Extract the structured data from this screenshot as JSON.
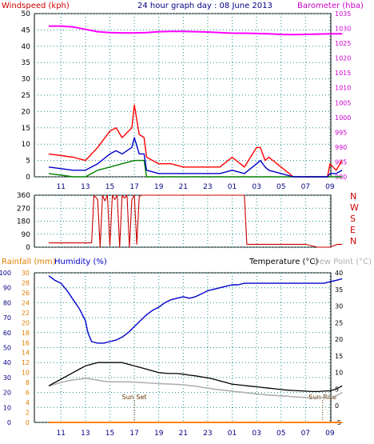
{
  "chart_data": [
    {
      "type": "line",
      "title": "24 hour graph day : 08 June 2013",
      "y_left_label": "Windspeed (kph)",
      "y_right_label": "Barometer (hba)",
      "ylim_left": [
        0,
        50
      ],
      "ylim_right": [
        980,
        1035
      ],
      "y_left_ticks": [
        "0",
        "5",
        "10",
        "15",
        "20",
        "25",
        "30",
        "35",
        "40",
        "45",
        "50"
      ],
      "y_right_ticks": [
        "980",
        "985",
        "990",
        "995",
        "1000",
        "1005",
        "1010",
        "1015",
        "1020",
        "1025",
        "1030",
        "1035"
      ],
      "x_ticks": [
        "11",
        "13",
        "15",
        "17",
        "19",
        "21",
        "23",
        "01",
        "03",
        "05",
        "07",
        "09"
      ],
      "grid": true,
      "colors": {
        "gust": "#ff0000",
        "average": "#0000cc",
        "wind": "#008000",
        "barometer": "#ff00ff"
      },
      "series": [
        {
          "key": "barometer",
          "x_hours": [
            0,
            1,
            2,
            3,
            4,
            5,
            6,
            7,
            8,
            9,
            10,
            11,
            12,
            13,
            14,
            15,
            16,
            17,
            18,
            19,
            20,
            21,
            22,
            23,
            24
          ],
          "values": [
            1030.8,
            1030.8,
            1030.5,
            1029.7,
            1028.9,
            1028.6,
            1028.5,
            1028.5,
            1028.6,
            1028.9,
            1029.0,
            1029.0,
            1028.9,
            1028.8,
            1028.6,
            1028.4,
            1028.4,
            1028.3,
            1028.2,
            1028.0,
            1027.9,
            1028.0,
            1028.1,
            1028.2,
            1028.2
          ]
        },
        {
          "key": "gust",
          "x_hours": [
            0,
            2,
            3,
            4,
            5,
            5.5,
            6,
            6.8,
            7,
            7.4,
            7.8,
            8,
            9,
            10,
            11,
            12,
            13,
            14,
            15,
            16,
            17,
            17.3,
            17.7,
            18,
            19,
            20,
            21,
            22,
            22.8,
            23,
            23.5,
            24
          ],
          "values": [
            7,
            6,
            5,
            9,
            14,
            15,
            12,
            15,
            22,
            13,
            12,
            6,
            4,
            4,
            3,
            3,
            3,
            3,
            6,
            3,
            9,
            9,
            5,
            6,
            3,
            0,
            0,
            0,
            0,
            4,
            2,
            5
          ]
        },
        {
          "key": "average",
          "x_hours": [
            0,
            2,
            3,
            4,
            5,
            5.5,
            6,
            6.8,
            7,
            7.4,
            7.8,
            8,
            9,
            10,
            11,
            12,
            13,
            14,
            15,
            16,
            17,
            17.3,
            17.7,
            18,
            19,
            20,
            21,
            22,
            22.8,
            23,
            23.5,
            24
          ],
          "values": [
            3,
            2,
            2,
            4,
            7,
            8,
            7,
            9,
            12,
            7,
            7,
            2,
            1,
            1,
            1,
            1,
            1,
            1,
            2,
            1,
            4,
            5,
            3,
            2,
            1,
            0,
            0,
            0,
            0,
            1,
            1,
            2
          ]
        },
        {
          "key": "wind",
          "x_hours": [
            0,
            2,
            3,
            4,
            5,
            6,
            7,
            7.8,
            8,
            9,
            24
          ],
          "values": [
            1,
            0,
            0,
            2,
            3,
            4,
            5,
            5,
            0,
            0,
            0
          ]
        }
      ]
    },
    {
      "type": "line",
      "y_right_label": "N W S E N",
      "y_labels": [
        "N",
        "W",
        "S",
        "E",
        "N"
      ],
      "ylim": [
        0,
        360
      ],
      "y_ticks": [
        "0",
        "90",
        "180",
        "270",
        "360"
      ],
      "x_ticks": [
        "11",
        "13",
        "15",
        "17",
        "19",
        "21",
        "23",
        "01",
        "03",
        "05",
        "07",
        "09"
      ],
      "grid": true,
      "colors": {
        "direction": "#cc0000"
      },
      "series": [
        {
          "key": "direction",
          "x_hours": [
            0,
            3.5,
            3.7,
            4,
            4.2,
            4.4,
            4.6,
            4.8,
            5,
            5.2,
            5.4,
            5.6,
            5.8,
            6,
            6.2,
            6.4,
            6.6,
            6.8,
            7,
            7.2,
            7.4,
            7.6,
            7.8,
            8,
            9,
            10,
            11,
            12,
            13,
            14,
            15,
            16,
            16.2,
            17,
            18,
            19,
            20,
            21,
            22,
            22.5,
            23,
            23.6,
            24
          ],
          "values": [
            30,
            30,
            360,
            330,
            0,
            360,
            320,
            360,
            10,
            360,
            330,
            360,
            0,
            360,
            340,
            360,
            0,
            330,
            360,
            20,
            350,
            360,
            360,
            360,
            360,
            360,
            360,
            360,
            360,
            360,
            360,
            360,
            20,
            20,
            20,
            20,
            20,
            20,
            0,
            0,
            0,
            20,
            20
          ]
        }
      ]
    },
    {
      "type": "line",
      "y_left_labels": [
        "Rainfall (mm)",
        "Humidity (%)"
      ],
      "y_right_labels": [
        "Temperature (°C)",
        "Dew Point (°C)"
      ],
      "humidity_ylim": [
        0,
        100
      ],
      "rainfall_ylim": [
        0,
        30
      ],
      "temp_ylim": [
        -5,
        40
      ],
      "humidity_ticks": [
        "0",
        "10",
        "20",
        "30",
        "40",
        "50",
        "60",
        "70",
        "80",
        "90",
        "100"
      ],
      "rainfall_ticks": [
        "0",
        "2",
        "4",
        "6",
        "8",
        "10",
        "12",
        "14",
        "16",
        "18",
        "20",
        "22",
        "24",
        "26",
        "28",
        "30"
      ],
      "temp_ticks": [
        "-5",
        "0",
        "5",
        "10",
        "15",
        "20",
        "25",
        "30",
        "35",
        "40"
      ],
      "x_ticks": [
        "11",
        "13",
        "15",
        "17",
        "19",
        "21",
        "23",
        "01",
        "03",
        "05",
        "07",
        "09"
      ],
      "annotations": [
        "Sun Set",
        "Sun Rise"
      ],
      "grid": true,
      "colors": {
        "humidity": "#0000cc",
        "temperature": "#000000",
        "dewpoint": "#b0b0b0",
        "rainfall": "#ff8000"
      },
      "series": [
        {
          "key": "humidity",
          "x_hours": [
            0,
            0.5,
            1,
            1.5,
            2,
            2.5,
            3,
            3.2,
            3.5,
            4,
            4.5,
            5,
            5.5,
            6,
            6.5,
            7,
            7.5,
            8,
            8.5,
            9,
            9.5,
            10,
            10.5,
            11,
            11.5,
            12,
            12.5,
            13,
            13.5,
            14,
            14.5,
            15,
            15.5,
            16,
            16.5,
            17,
            17.5,
            18,
            18.5,
            19,
            19.5,
            20,
            20.5,
            21,
            21.5,
            22,
            22.5,
            23,
            23.5,
            24
          ],
          "values": [
            98,
            95,
            93,
            88,
            82,
            76,
            68,
            60,
            54,
            53,
            53,
            54,
            55,
            57,
            60,
            64,
            68,
            72,
            75,
            77,
            80,
            82,
            83,
            84,
            83,
            84,
            86,
            88,
            89,
            90,
            91,
            92,
            92,
            93,
            93,
            93,
            93,
            93,
            93,
            93,
            93,
            93,
            93,
            93,
            93,
            93,
            93,
            94,
            95,
            96
          ]
        },
        {
          "key": "temperature",
          "x_hours": [
            0,
            0.5,
            1,
            1.5,
            2,
            2.5,
            3,
            3.5,
            4,
            4.5,
            5,
            5.5,
            6,
            6.5,
            7,
            7.5,
            8,
            8.5,
            9,
            9.5,
            10,
            10.5,
            11,
            11.5,
            12,
            12.5,
            13,
            13.5,
            14,
            14.5,
            15,
            15.5,
            16,
            16.5,
            17,
            17.5,
            18,
            18.5,
            19,
            19.5,
            20,
            20.5,
            21,
            21.5,
            22,
            22.5,
            23,
            23.5,
            24
          ],
          "values": [
            6,
            7,
            8,
            9,
            10,
            11,
            12,
            12.5,
            13,
            13,
            13,
            13,
            13,
            12.5,
            12,
            11.5,
            11,
            10.5,
            10,
            9.8,
            9.7,
            9.7,
            9.5,
            9.2,
            9,
            8.7,
            8.4,
            8,
            7.5,
            7,
            6.5,
            6.3,
            6.1,
            5.9,
            5.7,
            5.5,
            5.3,
            5.1,
            4.9,
            4.7,
            4.6,
            4.5,
            4.4,
            4.3,
            4.3,
            4.4,
            4.5,
            5,
            6
          ]
        },
        {
          "key": "dewpoint",
          "x_hours": [
            0,
            0.5,
            1,
            1.5,
            2,
            2.5,
            3,
            3.5,
            4,
            4.5,
            5,
            5.5,
            6,
            6.5,
            7,
            7.5,
            8,
            8.5,
            9,
            9.5,
            10,
            10.5,
            11,
            11.5,
            12,
            12.5,
            13,
            13.5,
            14,
            14.5,
            15,
            15.5,
            16,
            16.5,
            17,
            17.5,
            18,
            18.5,
            19,
            19.5,
            20,
            20.5,
            21,
            21.5,
            22,
            22.5,
            23,
            23.5,
            24
          ],
          "values": [
            6,
            6.5,
            7,
            7.5,
            7.8,
            8,
            8.3,
            8,
            7.7,
            7.4,
            7.2,
            7.2,
            7.2,
            7.2,
            7.1,
            7,
            6.9,
            6.8,
            6.7,
            6.6,
            6.5,
            6.4,
            6.3,
            6.1,
            5.9,
            5.6,
            5.3,
            5,
            4.8,
            4.6,
            4.4,
            4.2,
            4,
            3.8,
            3.6,
            3.4,
            3.2,
            3.1,
            3,
            2.9,
            2.7,
            2.6,
            2.5,
            2.4,
            2.4,
            2.4,
            2.5,
            3,
            4
          ]
        },
        {
          "key": "rainfall",
          "x_hours": [
            0,
            24
          ],
          "values": [
            0,
            0
          ]
        }
      ]
    }
  ]
}
